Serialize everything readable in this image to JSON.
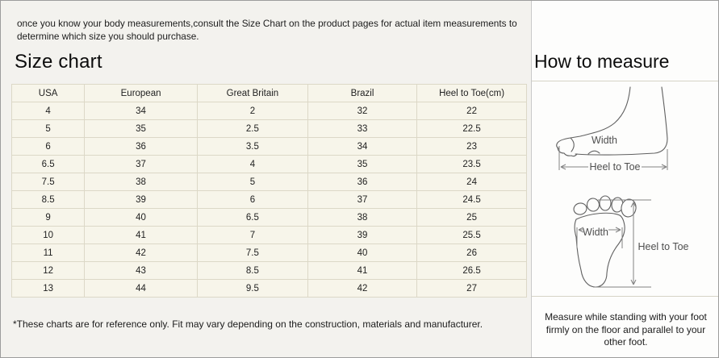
{
  "intro_text": "once you know your body measurements,consult the Size Chart on the product pages for actual item measurements to determine which size you should purchase.",
  "size_chart": {
    "title": "Size chart",
    "columns": [
      "USA",
      "European",
      "Great Britain",
      "Brazil",
      "Heel to Toe(cm)"
    ],
    "rows": [
      [
        "4",
        "34",
        "2",
        "32",
        "22"
      ],
      [
        "5",
        "35",
        "2.5",
        "33",
        "22.5"
      ],
      [
        "6",
        "36",
        "3.5",
        "34",
        "23"
      ],
      [
        "6.5",
        "37",
        "4",
        "35",
        "23.5"
      ],
      [
        "7.5",
        "38",
        "5",
        "36",
        "24"
      ],
      [
        "8.5",
        "39",
        "6",
        "37",
        "24.5"
      ],
      [
        "9",
        "40",
        "6.5",
        "38",
        "25"
      ],
      [
        "10",
        "41",
        "7",
        "39",
        "25.5"
      ],
      [
        "11",
        "42",
        "7.5",
        "40",
        "26"
      ],
      [
        "12",
        "43",
        "8.5",
        "41",
        "26.5"
      ],
      [
        "13",
        "44",
        "9.5",
        "42",
        "27"
      ]
    ],
    "footnote": "*These charts are for reference only. Fit may vary depending on the construction, materials and manufacturer."
  },
  "how_to_measure": {
    "title": "How to measure",
    "side_view": {
      "width_label": "Width",
      "length_label": "Heel to Toe"
    },
    "bottom_view": {
      "width_label": "Width",
      "length_label": "Heel to Toe"
    },
    "note": "Measure while standing with your foot firmly on the floor and parallel to your other foot."
  },
  "colors": {
    "outer_border": "#9c9c9c",
    "left_background": "#f3f2ee",
    "right_background": "#fdfdfc",
    "table_cell_background": "#f7f5ea",
    "table_border": "#dcd8c7",
    "foot_outline_stroke": "#606060",
    "measure_stroke": "#828282"
  }
}
